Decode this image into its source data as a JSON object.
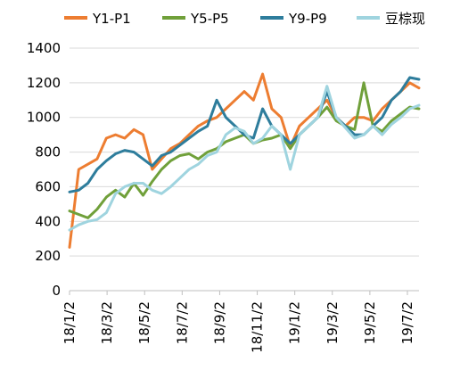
{
  "chart_data": {
    "type": "line",
    "title": "",
    "xlabel": "",
    "ylabel": "",
    "ylim": [
      0,
      1400
    ],
    "yticks": [
      0,
      200,
      400,
      600,
      800,
      1000,
      1200,
      1400
    ],
    "xticks": [
      "18/1/2",
      "18/3/2",
      "18/5/2",
      "18/7/2",
      "18/9/2",
      "18/11/2",
      "19/1/2",
      "19/3/2",
      "19/5/2",
      "19/7/2"
    ],
    "grid": "horizontal",
    "legend_position": "top",
    "x": [
      "18/1/2",
      "18/1/16",
      "18/2/1",
      "18/2/16",
      "18/3/2",
      "18/3/16",
      "18/4/2",
      "18/4/16",
      "18/5/2",
      "18/5/16",
      "18/6/1",
      "18/6/16",
      "18/7/2",
      "18/7/16",
      "18/8/1",
      "18/8/16",
      "18/9/2",
      "18/9/16",
      "18/10/2",
      "18/10/16",
      "18/11/2",
      "18/11/16",
      "18/12/1",
      "18/12/16",
      "19/1/2",
      "19/1/16",
      "19/2/1",
      "19/2/16",
      "19/3/2",
      "19/3/16",
      "19/4/2",
      "19/4/16",
      "19/5/2",
      "19/5/16",
      "19/6/1",
      "19/6/16",
      "19/7/2",
      "19/7/16",
      "19/7/31"
    ],
    "series": [
      {
        "name": "Y1-P1",
        "color": "#ed7d31",
        "values": [
          250,
          700,
          730,
          760,
          880,
          900,
          880,
          930,
          900,
          700,
          760,
          820,
          850,
          900,
          950,
          980,
          1000,
          1050,
          1100,
          1150,
          1100,
          1250,
          1050,
          1000,
          830,
          950,
          1000,
          1050,
          1100,
          1000,
          950,
          1000,
          1000,
          980,
          1050,
          1100,
          1150,
          1200,
          1170
        ]
      },
      {
        "name": "Y5-P5",
        "color": "#70a03a",
        "values": [
          460,
          440,
          420,
          470,
          540,
          580,
          540,
          620,
          550,
          630,
          700,
          750,
          780,
          790,
          760,
          800,
          820,
          860,
          880,
          900,
          850,
          870,
          880,
          900,
          820,
          900,
          950,
          1000,
          1060,
          980,
          950,
          930,
          1200,
          950,
          920,
          980,
          1020,
          1060,
          1050
        ]
      },
      {
        "name": "Y9-P9",
        "color": "#2e7d9c",
        "values": [
          570,
          580,
          620,
          700,
          750,
          790,
          810,
          800,
          760,
          720,
          780,
          800,
          840,
          880,
          920,
          950,
          1100,
          1000,
          950,
          900,
          880,
          1050,
          950,
          900,
          850,
          900,
          950,
          1000,
          1150,
          1000,
          950,
          900,
          900,
          950,
          1000,
          1100,
          1150,
          1230,
          1220
        ]
      },
      {
        "name": "豆棕现",
        "color": "#9fd4df",
        "values": [
          350,
          380,
          400,
          410,
          450,
          560,
          600,
          620,
          620,
          580,
          560,
          600,
          650,
          700,
          730,
          780,
          800,
          900,
          940,
          920,
          850,
          880,
          950,
          900,
          700,
          900,
          950,
          1000,
          1180,
          1000,
          940,
          880,
          900,
          950,
          900,
          960,
          1000,
          1050,
          1070
        ]
      }
    ]
  }
}
